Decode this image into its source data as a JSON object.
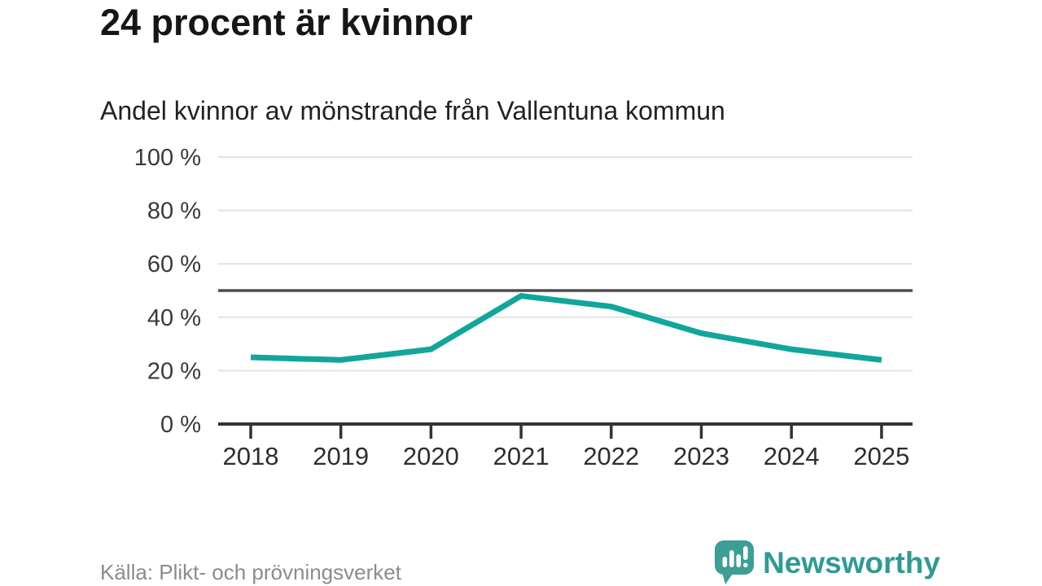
{
  "header": {
    "title": "24 procent är kvinnor",
    "subtitle": "Andel kvinnor av mönstrande från Vallentuna kommun"
  },
  "chart_data": {
    "type": "line",
    "categories": [
      "2018",
      "2019",
      "2020",
      "2021",
      "2022",
      "2023",
      "2024",
      "2025"
    ],
    "values": [
      25,
      24,
      28,
      48,
      44,
      34,
      28,
      24
    ],
    "title": "24 procent är kvinnor",
    "subtitle": "Andel kvinnor av mönstrande från Vallentuna kommun",
    "xlabel": "",
    "ylabel": "",
    "ylim": [
      0,
      100
    ],
    "yticks": [
      {
        "value": 0,
        "label": "0 %"
      },
      {
        "value": 20,
        "label": "20 %"
      },
      {
        "value": 40,
        "label": "40 %"
      },
      {
        "value": 60,
        "label": "60 %"
      },
      {
        "value": 80,
        "label": "80 %"
      },
      {
        "value": 100,
        "label": "100 %"
      }
    ],
    "reference_line": {
      "value": 50
    },
    "grid": true,
    "legend": "none",
    "line_color": "#12a69b",
    "reference_color": "#4d4d4d",
    "axis_color": "#333333",
    "grid_color": "#e3e3e3"
  },
  "footer": {
    "source": "Källa: Plikt- och prövningsverket",
    "brand": "Newsworthy",
    "brand_color": "#2f9b93",
    "icon_color": "#3c9e96"
  }
}
